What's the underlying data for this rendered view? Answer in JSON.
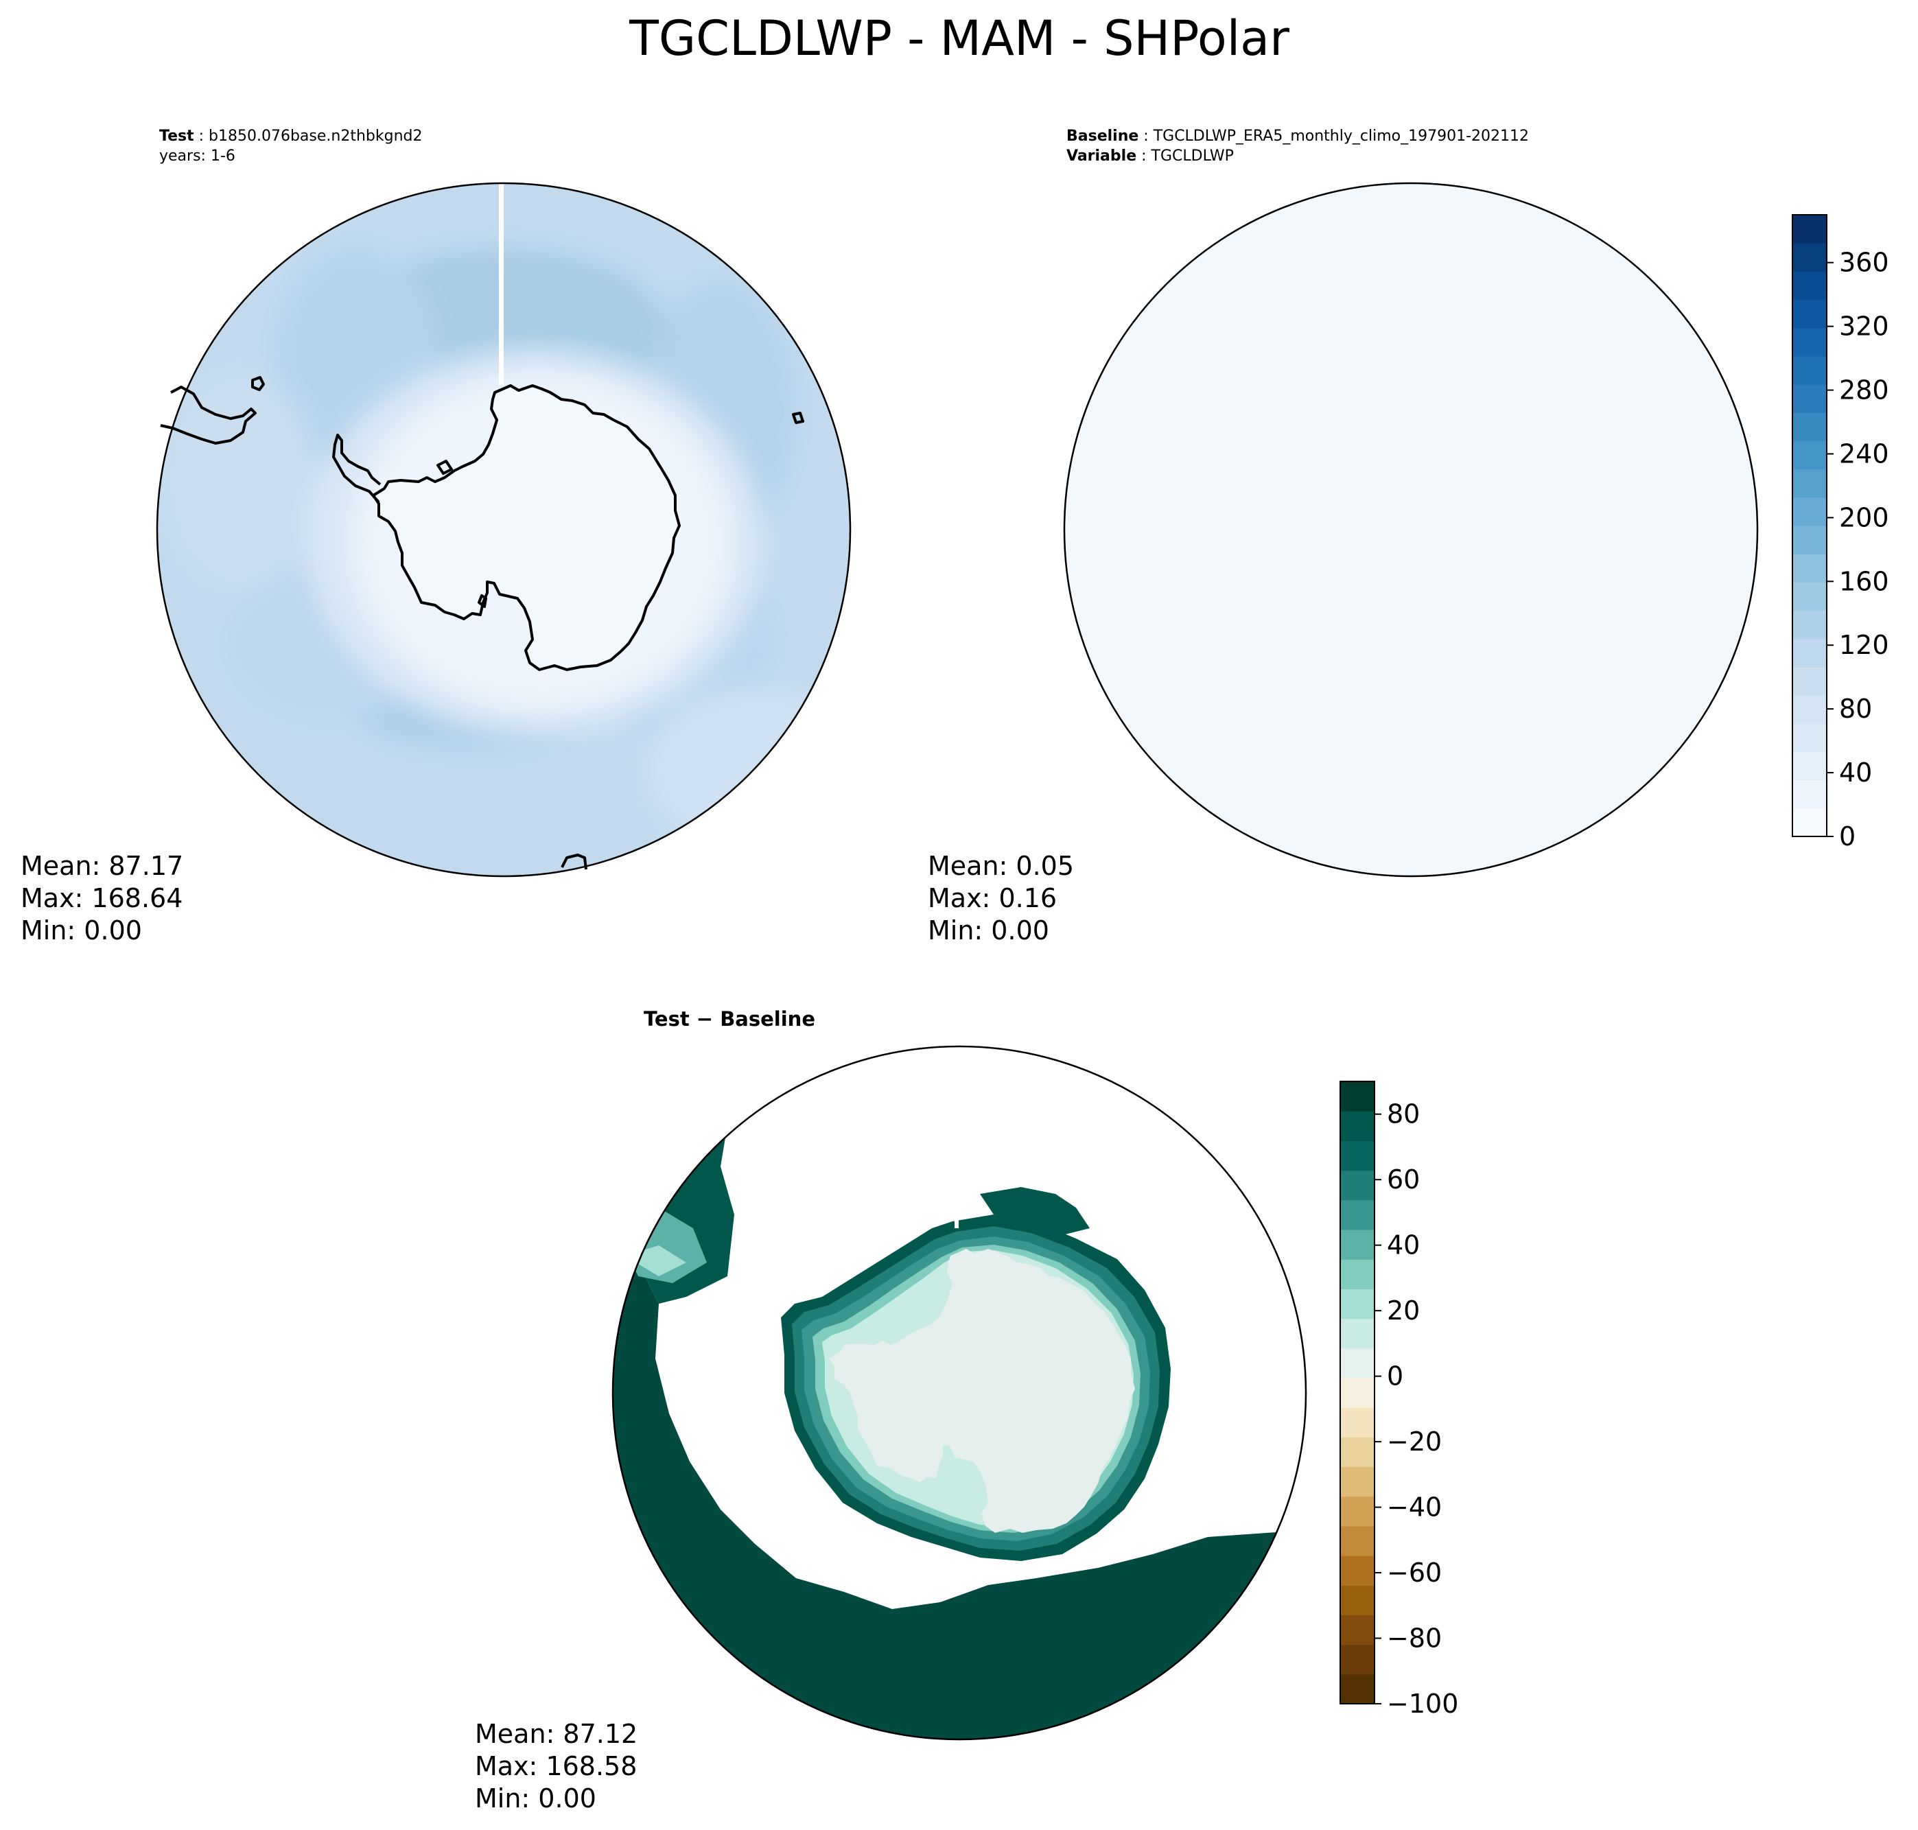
{
  "figure": {
    "title": "TGCLDLWP - MAM - SHPolar"
  },
  "panels": {
    "test": {
      "header_label": "Test",
      "header_value": "b1850.076base.n2thbkgnd2",
      "subheader": "years: 1-6",
      "stats": {
        "mean": "Mean: 87.17",
        "max": "Max: 168.64",
        "min": "Min:  0.00"
      }
    },
    "baseline": {
      "header_label": "Baseline",
      "header_value": "TGCLDLWP_ERA5_monthly_climo_197901-202112",
      "sub_label": "Variable",
      "sub_value": "TGCLDLWP",
      "stats": {
        "mean": "Mean:  0.05",
        "max": "Max:  0.16",
        "min": "Min:  0.00"
      }
    },
    "diff": {
      "title": "Test − Baseline",
      "stats": {
        "mean": "Mean: 87.12",
        "max": "Max: 168.58",
        "min": "Min:  0.00"
      }
    }
  },
  "colorbars": {
    "blues": {
      "range": [
        0,
        390
      ],
      "ticks": [
        "0",
        "40",
        "80",
        "120",
        "160",
        "200",
        "240",
        "280",
        "320",
        "360"
      ],
      "colors": [
        "#f7fbff",
        "#eef5fc",
        "#e5eff9",
        "#dce9f6",
        "#d4e4f4",
        "#cadef0",
        "#bfd8ed",
        "#b0d2e8",
        "#a0cae3",
        "#8dc1dd",
        "#7ab6d9",
        "#68abd5",
        "#56a0ce",
        "#4695c8",
        "#3989c1",
        "#2c7cba",
        "#2070b4",
        "#1664ab",
        "#0d58a1",
        "#084c91",
        "#083f7f",
        "#08306b"
      ]
    },
    "diverging": {
      "range": [
        -100,
        90
      ],
      "ticks": [
        "−100",
        "−80",
        "−60",
        "−40",
        "−20",
        "0",
        "20",
        "40",
        "60",
        "80"
      ],
      "colors": [
        "#543005",
        "#6a3d0a",
        "#814c0b",
        "#99600f",
        "#b07220",
        "#c3893a",
        "#d1a256",
        "#dfbb78",
        "#e9d29b",
        "#f3e3be",
        "#f6efdf",
        "#e5f1ef",
        "#c8ebe4",
        "#a5dfd4",
        "#80ccbf",
        "#5cb2a7",
        "#3a978f",
        "#1f7e76",
        "#09665e",
        "#01574c",
        "#003c30"
      ]
    }
  },
  "map": {
    "colors": {
      "ocean_test": "#c3daee",
      "ocean_test_dark": "#a9cde5",
      "ocean_test_light": "#d4e4f4",
      "land_test": "#f1f7fd",
      "baseline_fill": "#f3f8fd",
      "diff_land": "#e5f0ee",
      "diff_ring_outer": "#01574c",
      "diff_ring_mid": "#3a978f",
      "diff_ring_inner": "#80ccbf",
      "diff_ring_innermost": "#c8ebe4",
      "diff_ocean_dark": "#024a3f",
      "coast": "#000000"
    }
  }
}
